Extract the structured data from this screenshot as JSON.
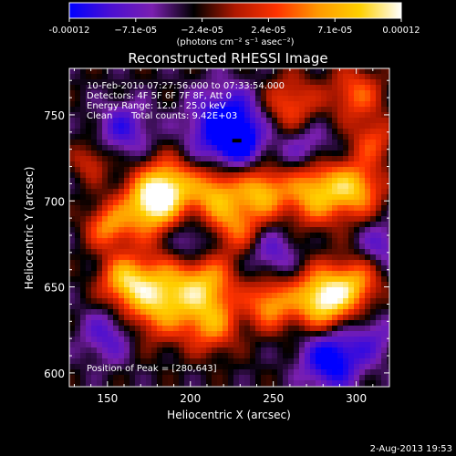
{
  "chart_data": {
    "type": "heatmap",
    "title": "Reconstructed RHESSI Image",
    "xlabel": "Heliocentric X (arcsec)",
    "ylabel": "Heliocentric Y (arcsec)",
    "xlim": [
      127,
      320
    ],
    "ylim": [
      592,
      777
    ],
    "x_ticks": [
      150,
      200,
      250,
      300
    ],
    "y_ticks": [
      600,
      650,
      700,
      750
    ],
    "grid": false,
    "colorbar": {
      "range": [
        -0.00012,
        0.00012
      ],
      "tick_labels": [
        "-0.00012",
        "−7.1e-05",
        "−2.4e-05",
        "2.4e-05",
        "7.1e-05",
        "0.00012"
      ],
      "unit_label": "(photons cm⁻² s⁻¹ asec⁻²)",
      "colors": [
        "#0000ff",
        "#4b0fd2",
        "#7a1fb0",
        "#000000",
        "#b01800",
        "#ff3300",
        "#ff9900",
        "#ffd000",
        "#ffffff"
      ]
    },
    "annotations": {
      "time_range": "10-Feb-2010 07:27:56.000 to 07:33:54.000",
      "detectors": "Detectors: 4F 5F 6F 7F 8F, Att 0",
      "energy": "Energy Range: 12.0 - 25.0 keV",
      "method": "Clean",
      "counts": "Total counts: 9.42E+03",
      "peak": "Position of Peak = [280,643]"
    },
    "peak_position": [
      280,
      643
    ],
    "min_position": [
      228,
      735
    ],
    "pos_blobs": [
      {
        "x": 175,
        "y": 697,
        "amp": 1.1,
        "w": 12
      },
      {
        "x": 187,
        "y": 709,
        "amp": 0.9,
        "w": 11
      },
      {
        "x": 215,
        "y": 704,
        "amp": 0.9,
        "w": 11
      },
      {
        "x": 243,
        "y": 705,
        "amp": 0.9,
        "w": 10
      },
      {
        "x": 275,
        "y": 706,
        "amp": 1.0,
        "w": 13
      },
      {
        "x": 300,
        "y": 707,
        "amp": 0.85,
        "w": 11
      },
      {
        "x": 182,
        "y": 644,
        "amp": 1.1,
        "w": 15
      },
      {
        "x": 210,
        "y": 652,
        "amp": 0.8,
        "w": 12
      },
      {
        "x": 160,
        "y": 654,
        "amp": 0.8,
        "w": 10
      },
      {
        "x": 280,
        "y": 643,
        "amp": 1.3,
        "w": 12
      },
      {
        "x": 300,
        "y": 652,
        "amp": 0.7,
        "w": 10
      },
      {
        "x": 248,
        "y": 640,
        "amp": 0.8,
        "w": 10
      },
      {
        "x": 213,
        "y": 628,
        "amp": 0.7,
        "w": 11
      },
      {
        "x": 260,
        "y": 755,
        "amp": 0.6,
        "w": 12
      },
      {
        "x": 300,
        "y": 762,
        "amp": 0.6,
        "w": 11
      },
      {
        "x": 150,
        "y": 685,
        "amp": 0.7,
        "w": 9
      },
      {
        "x": 228,
        "y": 685,
        "amp": 0.6,
        "w": 10
      },
      {
        "x": 310,
        "y": 735,
        "amp": 0.5,
        "w": 9
      },
      {
        "x": 140,
        "y": 723,
        "amp": 0.4,
        "w": 8
      }
    ],
    "neg_blobs": [
      {
        "x": 223,
        "y": 742,
        "amp": 1.0,
        "w": 15
      },
      {
        "x": 228,
        "y": 735,
        "amp": 0.7,
        "w": 6
      },
      {
        "x": 285,
        "y": 608,
        "amp": 0.85,
        "w": 12
      },
      {
        "x": 160,
        "y": 742,
        "amp": 0.5,
        "w": 11
      },
      {
        "x": 150,
        "y": 622,
        "amp": 0.45,
        "w": 11
      },
      {
        "x": 270,
        "y": 730,
        "amp": 0.45,
        "w": 12
      },
      {
        "x": 200,
        "y": 675,
        "amp": 0.4,
        "w": 10
      },
      {
        "x": 250,
        "y": 670,
        "amp": 0.4,
        "w": 10
      },
      {
        "x": 315,
        "y": 675,
        "amp": 0.4,
        "w": 9
      },
      {
        "x": 310,
        "y": 620,
        "amp": 0.35,
        "w": 10
      }
    ]
  },
  "footer": {
    "date": "2-Aug-2013 19:53"
  }
}
